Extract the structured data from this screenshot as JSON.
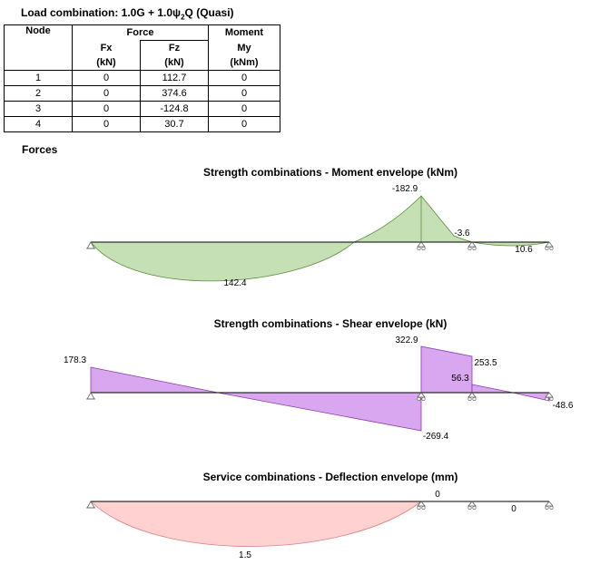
{
  "load_combination": {
    "prefix": "Load combination: 1.0G + 1.0",
    "psi": "ψ",
    "psi_sub": "2",
    "suffix": "Q (Quasi)"
  },
  "table": {
    "header": {
      "node": "Node",
      "force": "Force",
      "moment": "Moment",
      "fx": "Fx",
      "fz": "Fz",
      "my": "My",
      "fx_unit": "(kN)",
      "fz_unit": "(kN)",
      "my_unit": "(kNm)"
    },
    "rows": [
      {
        "node": "1",
        "fx": "0",
        "fz": "112.7",
        "my": "0"
      },
      {
        "node": "2",
        "fx": "0",
        "fz": "374.6",
        "my": "0"
      },
      {
        "node": "3",
        "fx": "0",
        "fz": "-124.8",
        "my": "0"
      },
      {
        "node": "4",
        "fx": "0",
        "fz": "30.7",
        "my": "0"
      }
    ]
  },
  "forces_heading": "Forces",
  "diagrams": {
    "moment": {
      "title": "Strength combinations - Moment envelope (kNm)",
      "labels": {
        "peak_neg": "-182.9",
        "small_neg": "-3.6",
        "span3": "10.6",
        "span1": "142.4"
      },
      "fill": "#c5e0b4",
      "stroke": "#5a8a3a"
    },
    "shear": {
      "title": "Strength combinations - Shear envelope (kN)",
      "labels": {
        "left": "178.3",
        "node2_top": "322.9",
        "node2_bottom": "-269.4",
        "node3_top": "253.5",
        "node3_mid": "56.3",
        "right": "-48.6"
      },
      "fill": "#d9a6f0",
      "stroke": "#8a3ab0"
    },
    "deflection": {
      "title": "Service combinations - Deflection envelope (mm)",
      "labels": {
        "span1": "1.5",
        "span2": "0",
        "span3": "0"
      },
      "fill": "#ffd1d1",
      "stroke": "#d98080"
    }
  }
}
